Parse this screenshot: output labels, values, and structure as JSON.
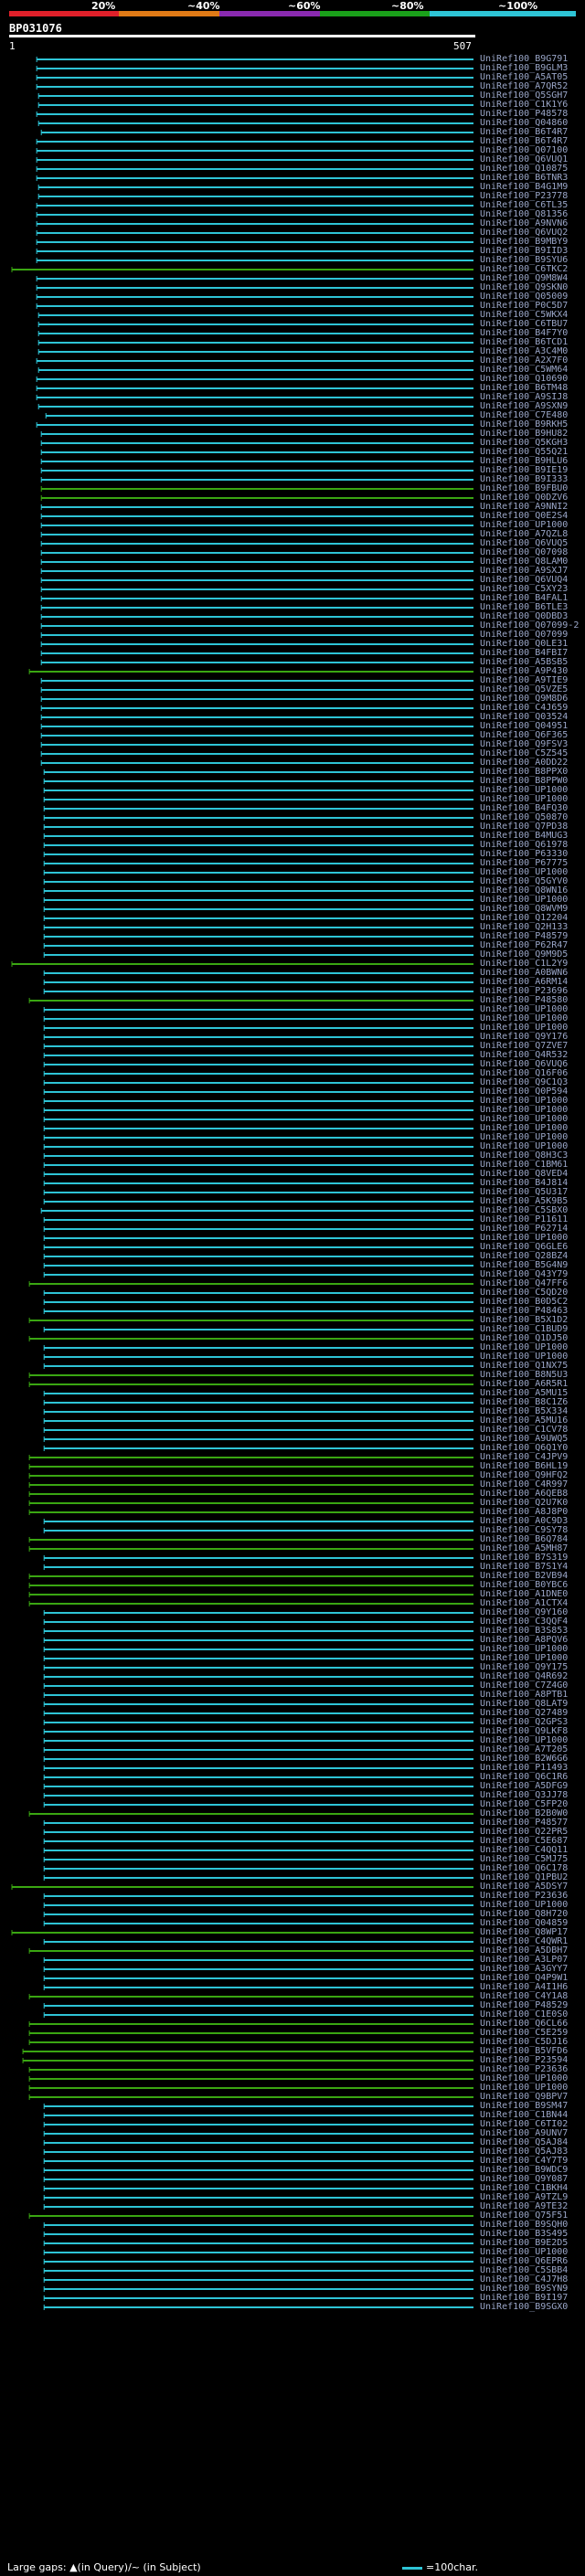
{
  "header": {
    "pct_labels": [
      "20%",
      "~40%",
      "~60%",
      "~80%",
      "~100%"
    ],
    "scale_colors": [
      "#e0202a",
      "#e07a16",
      "#8a2ab0",
      "#1aa01a",
      "#2ec4d6"
    ],
    "query_id": "BP031076",
    "scale_start": "1",
    "scale_end": "507"
  },
  "colors": {
    "full": "#2ec4d6",
    "partial": "#3aa612",
    "faint": "#7a6a10",
    "background": "#000000"
  },
  "legend": {
    "large_gaps": "Large gaps: ▲(in Query)/~ (in Subject)",
    "scale": "=100char."
  },
  "hits": [
    {
      "label": "UniRef100_B9G791",
      "start": 30
    },
    {
      "label": "UniRef100_B9GLM3",
      "start": 30
    },
    {
      "label": "UniRef100_A5AT05",
      "start": 30
    },
    {
      "label": "UniRef100_A7QR52",
      "start": 30
    },
    {
      "label": "UniRef100_Q5SGH7",
      "start": 32
    },
    {
      "label": "UniRef100_C1K1Y6",
      "start": 32
    },
    {
      "label": "UniRef100_P48578",
      "start": 30
    },
    {
      "label": "UniRef100_Q04860",
      "start": 32
    },
    {
      "label": "UniRef100_B6T4R7",
      "start": 35
    },
    {
      "label": "UniRef100_B6T4R7",
      "start": 30
    },
    {
      "label": "UniRef100_Q07100",
      "start": 30
    },
    {
      "label": "UniRef100_Q6VUQ1",
      "start": 30
    },
    {
      "label": "UniRef100_Q10875",
      "start": 30
    },
    {
      "label": "UniRef100_B6TNR3",
      "start": 30
    },
    {
      "label": "UniRef100_B4G1M9",
      "start": 32
    },
    {
      "label": "UniRef100_P23778",
      "start": 32
    },
    {
      "label": "UniRef100_C6TL35",
      "start": 30
    },
    {
      "label": "UniRef100_Q81356",
      "start": 30
    },
    {
      "label": "UniRef100_A9NVN6",
      "start": 30
    },
    {
      "label": "UniRef100_Q6VUQ2",
      "start": 30
    },
    {
      "label": "UniRef100_B9MBY9",
      "start": 30
    },
    {
      "label": "UniRef100_B9IID3",
      "start": 30
    },
    {
      "label": "UniRef100_B9SYU6",
      "start": 30
    },
    {
      "label": "UniRef100_C6TKC2",
      "start": 3,
      "type": "partial"
    },
    {
      "label": "UniRef100_Q9M8W4",
      "start": 30
    },
    {
      "label": "UniRef100_Q9SKN0",
      "start": 30
    },
    {
      "label": "UniRef100_Q05009",
      "start": 30
    },
    {
      "label": "UniRef100_P0C5D7",
      "start": 30
    },
    {
      "label": "UniRef100_C5WKX4",
      "start": 32
    },
    {
      "label": "UniRef100_C6TBU7",
      "start": 32
    },
    {
      "label": "UniRef100_B4F7Y0",
      "start": 32
    },
    {
      "label": "UniRef100_B6TCD1",
      "start": 32
    },
    {
      "label": "UniRef100_A3C4M0",
      "start": 32
    },
    {
      "label": "UniRef100_A2X7F0",
      "start": 30
    },
    {
      "label": "UniRef100_C5WM64",
      "start": 32
    },
    {
      "label": "UniRef100_Q10690",
      "start": 30
    },
    {
      "label": "UniRef100_B6TM48",
      "start": 30
    },
    {
      "label": "UniRef100_A9SIJ8",
      "start": 30
    },
    {
      "label": "UniRef100_A9SXN9",
      "start": 32
    },
    {
      "label": "UniRef100_C7E480",
      "start": 40
    },
    {
      "label": "UniRef100_B9RKH5",
      "start": 30
    },
    {
      "label": "UniRef100_B9HU82",
      "start": 35
    },
    {
      "label": "UniRef100_Q5KGH3",
      "start": 35
    },
    {
      "label": "UniRef100_Q55Q21",
      "start": 35
    },
    {
      "label": "UniRef100_B9HLU6",
      "start": 35
    },
    {
      "label": "UniRef100_B9IE19",
      "start": 35
    },
    {
      "label": "UniRef100_B9I333",
      "start": 35
    },
    {
      "label": "UniRef100_B9FBU0",
      "start": 35,
      "type": "partial"
    },
    {
      "label": "UniRef100_Q0DZV6",
      "start": 35,
      "type": "partial"
    },
    {
      "label": "UniRef100_A9NNI2",
      "start": 35
    },
    {
      "label": "UniRef100_Q0E2S4",
      "start": 35
    },
    {
      "label": "UniRef100_UP1000",
      "start": 35
    },
    {
      "label": "UniRef100_A7QZL8",
      "start": 35
    },
    {
      "label": "UniRef100_Q6VUQ5",
      "start": 35
    },
    {
      "label": "UniRef100_Q07098",
      "start": 35
    },
    {
      "label": "UniRef100_Q8LAM0",
      "start": 35
    },
    {
      "label": "UniRef100_A9SXJ7",
      "start": 35
    },
    {
      "label": "UniRef100_Q6VUQ4",
      "start": 35
    },
    {
      "label": "UniRef100_C5XY23",
      "start": 35
    },
    {
      "label": "UniRef100_B4FAL1",
      "start": 35
    },
    {
      "label": "UniRef100_B6TLE3",
      "start": 35
    },
    {
      "label": "UniRef100_Q0DBD3",
      "start": 35
    },
    {
      "label": "UniRef100_Q07099-2",
      "start": 35
    },
    {
      "label": "UniRef100_Q07099",
      "start": 35
    },
    {
      "label": "UniRef100_Q0LE31",
      "start": 35
    },
    {
      "label": "UniRef100_B4FBI7",
      "start": 35
    },
    {
      "label": "UniRef100_A5BSB5",
      "start": 35
    },
    {
      "label": "UniRef100_A9P430",
      "start": 22,
      "type": "partial"
    },
    {
      "label": "UniRef100_A9TIE9",
      "start": 35
    },
    {
      "label": "UniRef100_Q5VZE5",
      "start": 35
    },
    {
      "label": "UniRef100_Q9M8D6",
      "start": 35
    },
    {
      "label": "UniRef100_C4J659",
      "start": 35
    },
    {
      "label": "UniRef100_Q03524",
      "start": 35
    },
    {
      "label": "UniRef100_Q04951",
      "start": 35
    },
    {
      "label": "UniRef100_Q6F365",
      "start": 35
    },
    {
      "label": "UniRef100_Q9FSV3",
      "start": 35
    },
    {
      "label": "UniRef100_C5Z545",
      "start": 35
    },
    {
      "label": "UniRef100_A0DD22",
      "start": 35
    },
    {
      "label": "UniRef100_B8PPX0",
      "start": 38
    },
    {
      "label": "UniRef100_B8PPW0",
      "start": 38
    },
    {
      "label": "UniRef100_UP1000",
      "start": 38
    },
    {
      "label": "UniRef100_UP1000",
      "start": 38
    },
    {
      "label": "UniRef100_B4FQ30",
      "start": 38
    },
    {
      "label": "UniRef100_Q50870",
      "start": 38
    },
    {
      "label": "UniRef100_Q7PD38",
      "start": 38
    },
    {
      "label": "UniRef100_B4MUG3",
      "start": 38
    },
    {
      "label": "UniRef100_Q61978",
      "start": 38
    },
    {
      "label": "UniRef100_P63330",
      "start": 38
    },
    {
      "label": "UniRef100_P67775",
      "start": 38
    },
    {
      "label": "UniRef100_UP1000",
      "start": 38
    },
    {
      "label": "UniRef100_Q5GYV0",
      "start": 38
    },
    {
      "label": "UniRef100_Q8WN16",
      "start": 38
    },
    {
      "label": "UniRef100_UP1000",
      "start": 38
    },
    {
      "label": "UniRef100_Q8WVM9",
      "start": 38
    },
    {
      "label": "UniRef100_Q12204",
      "start": 38
    },
    {
      "label": "UniRef100_Q2H133",
      "start": 38
    },
    {
      "label": "UniRef100_P48579",
      "start": 38
    },
    {
      "label": "UniRef100_P62R47",
      "start": 38
    },
    {
      "label": "UniRef100_Q9M9D5",
      "start": 38
    },
    {
      "label": "UniRef100_C1L2Y9",
      "start": 3,
      "type": "partial"
    },
    {
      "label": "UniRef100_A0BWN6",
      "start": 38
    },
    {
      "label": "UniRef100_A6RM14",
      "start": 38
    },
    {
      "label": "UniRef100_P23696",
      "start": 38
    },
    {
      "label": "UniRef100_P48580",
      "start": 22,
      "type": "partial"
    },
    {
      "label": "UniRef100_UP1000",
      "start": 38
    },
    {
      "label": "UniRef100_UP1000",
      "start": 38
    },
    {
      "label": "UniRef100_UP1000",
      "start": 38
    },
    {
      "label": "UniRef100_Q9Y176",
      "start": 38
    },
    {
      "label": "UniRef100_Q7ZVE7",
      "start": 38
    },
    {
      "label": "UniRef100_Q4R532",
      "start": 38
    },
    {
      "label": "UniRef100_Q6VUQ6",
      "start": 38
    },
    {
      "label": "UniRef100_Q16F06",
      "start": 38
    },
    {
      "label": "UniRef100_Q9C1Q3",
      "start": 38
    },
    {
      "label": "UniRef100_Q0P594",
      "start": 38
    },
    {
      "label": "UniRef100_UP1000",
      "start": 38
    },
    {
      "label": "UniRef100_UP1000",
      "start": 38
    },
    {
      "label": "UniRef100_UP1000",
      "start": 38
    },
    {
      "label": "UniRef100_UP1000",
      "start": 38
    },
    {
      "label": "UniRef100_UP1000",
      "start": 38
    },
    {
      "label": "UniRef100_UP1000",
      "start": 38
    },
    {
      "label": "UniRef100_Q8H3C3",
      "start": 38
    },
    {
      "label": "UniRef100_C1BM61",
      "start": 38
    },
    {
      "label": "UniRef100_Q8VED4",
      "start": 38
    },
    {
      "label": "UniRef100_B4J814",
      "start": 38
    },
    {
      "label": "UniRef100_Q5U317",
      "start": 38
    },
    {
      "label": "UniRef100_A5K9B5",
      "start": 38
    },
    {
      "label": "UniRef100_C5SBX0",
      "start": 35
    },
    {
      "label": "UniRef100_P11611",
      "start": 38
    },
    {
      "label": "UniRef100_P62714",
      "start": 38
    },
    {
      "label": "UniRef100_UP1000",
      "start": 38
    },
    {
      "label": "UniRef100_Q6GLE6",
      "start": 38
    },
    {
      "label": "UniRef100_Q28BZ4",
      "start": 38
    },
    {
      "label": "UniRef100_B5G4N9",
      "start": 38
    },
    {
      "label": "UniRef100_Q43Y79",
      "start": 38
    },
    {
      "label": "UniRef100_Q47FF6",
      "start": 22,
      "type": "partial"
    },
    {
      "label": "UniRef100_C5QD20",
      "start": 38
    },
    {
      "label": "UniRef100_B0D5C2",
      "start": 38
    },
    {
      "label": "UniRef100_P48463",
      "start": 38
    },
    {
      "label": "UniRef100_B5X1D2",
      "start": 22,
      "type": "partial"
    },
    {
      "label": "UniRef100_C1BUD9",
      "start": 38
    },
    {
      "label": "UniRef100_Q1DJ50",
      "start": 22,
      "type": "partial"
    },
    {
      "label": "UniRef100_UP1000",
      "start": 38
    },
    {
      "label": "UniRef100_UP1000",
      "start": 38
    },
    {
      "label": "UniRef100_Q1NX75",
      "start": 38
    },
    {
      "label": "UniRef100_B8N5U3",
      "start": 22,
      "type": "partial"
    },
    {
      "label": "UniRef100_A6R5R1",
      "start": 22,
      "type": "partial"
    },
    {
      "label": "UniRef100_A5MU15",
      "start": 38
    },
    {
      "label": "UniRef100_B8C1Z6",
      "start": 38
    },
    {
      "label": "UniRef100_B5X334",
      "start": 38
    },
    {
      "label": "UniRef100_A5MU16",
      "start": 38
    },
    {
      "label": "UniRef100_C1CV78",
      "start": 38
    },
    {
      "label": "UniRef100_A9UWQ5",
      "start": 38
    },
    {
      "label": "UniRef100_Q6Q1Y0",
      "start": 38
    },
    {
      "label": "UniRef100_C4JPV9",
      "start": 22,
      "type": "partial"
    },
    {
      "label": "UniRef100_B6HL19",
      "start": 22,
      "type": "partial"
    },
    {
      "label": "UniRef100_Q9HFQ2",
      "start": 22,
      "type": "partial"
    },
    {
      "label": "UniRef100_C4R997",
      "start": 22,
      "type": "partial"
    },
    {
      "label": "UniRef100_A6QEB8",
      "start": 22,
      "type": "partial"
    },
    {
      "label": "UniRef100_Q2U7K0",
      "start": 22,
      "type": "partial"
    },
    {
      "label": "UniRef100_A8J8P0",
      "start": 22,
      "type": "partial"
    },
    {
      "label": "UniRef100_A0C9D3",
      "start": 38
    },
    {
      "label": "UniRef100_C9SY78",
      "start": 38
    },
    {
      "label": "UniRef100_B6Q784",
      "start": 22,
      "type": "partial"
    },
    {
      "label": "UniRef100_A5MH87",
      "start": 22,
      "type": "partial"
    },
    {
      "label": "UniRef100_B7S319",
      "start": 38
    },
    {
      "label": "UniRef100_B7S1Y4",
      "start": 38
    },
    {
      "label": "UniRef100_B2VB94",
      "start": 22,
      "type": "partial"
    },
    {
      "label": "UniRef100_B0YBC6",
      "start": 22,
      "type": "partial"
    },
    {
      "label": "UniRef100_A1DNE0",
      "start": 22,
      "type": "partial"
    },
    {
      "label": "UniRef100_A1CTX4",
      "start": 22,
      "type": "partial"
    },
    {
      "label": "UniRef100_Q9Y160",
      "start": 38
    },
    {
      "label": "UniRef100_C3QQF4",
      "start": 38
    },
    {
      "label": "UniRef100_B3S853",
      "start": 38
    },
    {
      "label": "UniRef100_A8PQV6",
      "start": 38
    },
    {
      "label": "UniRef100_UP1000",
      "start": 38
    },
    {
      "label": "UniRef100_UP1000",
      "start": 38
    },
    {
      "label": "UniRef100_Q9Y175",
      "start": 38
    },
    {
      "label": "UniRef100_Q4R692",
      "start": 38
    },
    {
      "label": "UniRef100_C7Z4G0",
      "start": 38
    },
    {
      "label": "UniRef100_A8PTB1",
      "start": 38
    },
    {
      "label": "UniRef100_Q8LAT9",
      "start": 38
    },
    {
      "label": "UniRef100_Q27489",
      "start": 38
    },
    {
      "label": "UniRef100_Q2GPS3",
      "start": 38
    },
    {
      "label": "UniRef100_Q9LKF8",
      "start": 38
    },
    {
      "label": "UniRef100_UP1000",
      "start": 38
    },
    {
      "label": "UniRef100_A7T205",
      "start": 38
    },
    {
      "label": "UniRef100_B2W6G6",
      "start": 38
    },
    {
      "label": "UniRef100_P11493",
      "start": 38
    },
    {
      "label": "UniRef100_Q6C1R6",
      "start": 38
    },
    {
      "label": "UniRef100_A5DFG9",
      "start": 38
    },
    {
      "label": "UniRef100_Q3JJ78",
      "start": 38
    },
    {
      "label": "UniRef100_C5FP20",
      "start": 38
    },
    {
      "label": "UniRef100_B2B0W0",
      "start": 22,
      "type": "partial"
    },
    {
      "label": "UniRef100_P48577",
      "start": 38
    },
    {
      "label": "UniRef100_Q22PR5",
      "start": 38
    },
    {
      "label": "UniRef100_C5E687",
      "start": 38
    },
    {
      "label": "UniRef100_C4QQ11",
      "start": 38
    },
    {
      "label": "UniRef100_C5MJ75",
      "start": 38
    },
    {
      "label": "UniRef100_Q6C178",
      "start": 38
    },
    {
      "label": "UniRef100_Q1PBU2",
      "start": 38
    },
    {
      "label": "UniRef100_A5DSY7",
      "start": 3,
      "type": "partial"
    },
    {
      "label": "UniRef100_P23636",
      "start": 38
    },
    {
      "label": "UniRef100_UP1000",
      "start": 38
    },
    {
      "label": "UniRef100_Q8H720",
      "start": 38
    },
    {
      "label": "UniRef100_Q04859",
      "start": 38
    },
    {
      "label": "UniRef100_Q8WP17",
      "start": 3,
      "type": "partial"
    },
    {
      "label": "UniRef100_C4QWR1",
      "start": 38
    },
    {
      "label": "UniRef100_A5DBH7",
      "start": 22,
      "type": "partial"
    },
    {
      "label": "UniRef100_A3LP07",
      "start": 38
    },
    {
      "label": "UniRef100_A3GYY7",
      "start": 38
    },
    {
      "label": "UniRef100_Q4P9W1",
      "start": 38
    },
    {
      "label": "UniRef100_A4I1H6",
      "start": 38
    },
    {
      "label": "UniRef100_C4Y1A8",
      "start": 22,
      "type": "partial"
    },
    {
      "label": "UniRef100_P48529",
      "start": 38
    },
    {
      "label": "UniRef100_C1E0S0",
      "start": 38
    },
    {
      "label": "UniRef100_Q6CL66",
      "start": 22,
      "type": "partial"
    },
    {
      "label": "UniRef100_C5E259",
      "start": 22,
      "type": "partial"
    },
    {
      "label": "UniRef100_C5DJ16",
      "start": 22,
      "type": "partial"
    },
    {
      "label": "UniRef100_B5VFD6",
      "start": 15,
      "type": "partial"
    },
    {
      "label": "UniRef100_P23594",
      "start": 15,
      "type": "partial"
    },
    {
      "label": "UniRef100_P23636",
      "start": 22,
      "type": "partial"
    },
    {
      "label": "UniRef100_UP1000",
      "start": 22,
      "type": "partial"
    },
    {
      "label": "UniRef100_UP1000",
      "start": 22,
      "type": "partial"
    },
    {
      "label": "UniRef100_Q9BPV7",
      "start": 22,
      "type": "partial"
    },
    {
      "label": "UniRef100_B9SM47",
      "start": 38
    },
    {
      "label": "UniRef100_C1BN44",
      "start": 38
    },
    {
      "label": "UniRef100_C6TI02",
      "start": 38
    },
    {
      "label": "UniRef100_A9UNV7",
      "start": 38
    },
    {
      "label": "UniRef100_Q5AJ84",
      "start": 38
    },
    {
      "label": "UniRef100_Q5AJ83",
      "start": 38
    },
    {
      "label": "UniRef100_C4Y7T9",
      "start": 38
    },
    {
      "label": "UniRef100_B9WDC9",
      "start": 38
    },
    {
      "label": "UniRef100_Q9Y087",
      "start": 38
    },
    {
      "label": "UniRef100_C1BKH4",
      "start": 38
    },
    {
      "label": "UniRef100_A9TZL9",
      "start": 38
    },
    {
      "label": "UniRef100_A9TE32",
      "start": 38
    },
    {
      "label": "UniRef100_Q75F51",
      "start": 22,
      "type": "partial"
    },
    {
      "label": "UniRef100_B9SQH0",
      "start": 38
    },
    {
      "label": "UniRef100_B3S495",
      "start": 38
    },
    {
      "label": "UniRef100_B9E2D5",
      "start": 38
    },
    {
      "label": "UniRef100_UP1000",
      "start": 38
    },
    {
      "label": "UniRef100_Q6EPR6",
      "start": 38
    },
    {
      "label": "UniRef100_C5SBB4",
      "start": 38
    },
    {
      "label": "UniRef100_C4J7H8",
      "start": 38
    },
    {
      "label": "UniRef100_B9SYN9",
      "start": 38
    },
    {
      "label": "UniRef100_B9I197",
      "start": 38
    },
    {
      "label": "UniRef100_B9SGX0",
      "start": 38
    }
  ]
}
